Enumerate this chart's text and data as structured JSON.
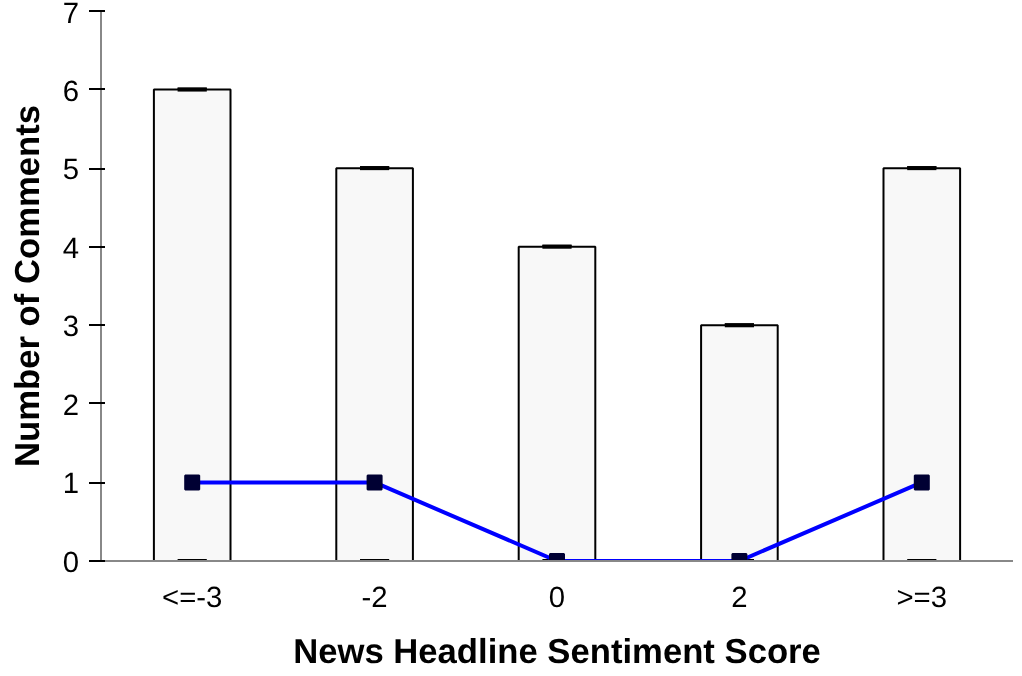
{
  "chart_data": {
    "type": "bar",
    "xlabel": "News Headline Sentiment Score",
    "ylabel": "Number of Comments",
    "categories": [
      "<=-3",
      "-2",
      "0",
      "2",
      ">=3"
    ],
    "series": [
      {
        "color": "#f8f8f8",
        "values": [
          6,
          5,
          4,
          3,
          5
        ],
        "errors": [
          [
            6,
            0
          ],
          [
            5,
            0
          ],
          [
            4,
            0
          ],
          [
            3,
            0
          ],
          [
            5,
            0
          ]
        ]
      },
      {
        "type": "line",
        "color": "#0000ff",
        "values": [
          1,
          1,
          0,
          0,
          1
        ],
        "marker": "square"
      }
    ],
    "ylim": [
      0,
      7
    ],
    "yticks": [
      0,
      1,
      2,
      3,
      4,
      5,
      6,
      7
    ],
    "grid": false
  }
}
